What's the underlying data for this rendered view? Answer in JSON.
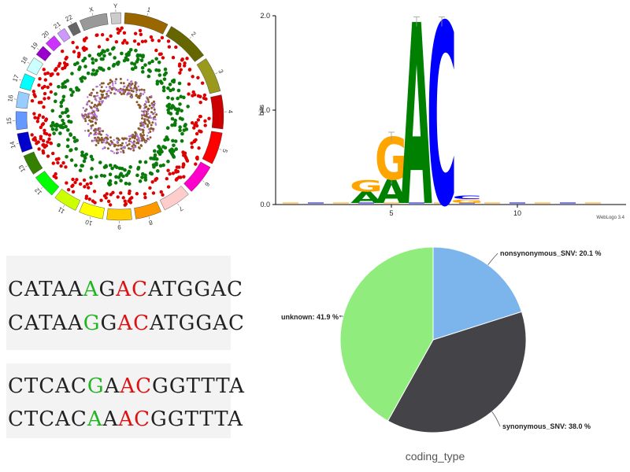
{
  "circos": {
    "chromosomes": [
      "1",
      "2",
      "3",
      "4",
      "5",
      "6",
      "7",
      "8",
      "9",
      "10",
      "11",
      "12",
      "13",
      "14",
      "15",
      "16",
      "17",
      "18",
      "19",
      "20",
      "21",
      "22",
      "X",
      "Y"
    ],
    "colors": [
      "#996600",
      "#666600",
      "#99991e",
      "#cc0000",
      "#ff0000",
      "#ff00cc",
      "#ffcccc",
      "#ff9900",
      "#ffcc00",
      "#ffff00",
      "#ccff00",
      "#00ff00",
      "#358000",
      "#0000cc",
      "#6699ff",
      "#99ccff",
      "#00ffff",
      "#ccffff",
      "#9900cc",
      "#cc33ff",
      "#cc99ff",
      "#666666",
      "#999999",
      "#cccccc"
    ],
    "track_colors": [
      "#dd0000",
      "#0a7a0a",
      "#8b5a2b",
      "#b06fe0"
    ]
  },
  "logo_chart": {
    "type": "sequence-logo",
    "ylabel": "bits",
    "yticks": [
      "0.0",
      "1.0",
      "2.0"
    ],
    "ylim": [
      0,
      2
    ],
    "xticks": [
      "5",
      "10"
    ],
    "credit": "WebLogo 3.4",
    "positions": [
      {
        "pos": 1,
        "letters": []
      },
      {
        "pos": 2,
        "letters": []
      },
      {
        "pos": 3,
        "letters": []
      },
      {
        "pos": 4,
        "letters": [
          {
            "l": "A",
            "h": 0.12
          },
          {
            "l": "G",
            "h": 0.12
          }
        ]
      },
      {
        "pos": 5,
        "letters": [
          {
            "l": "A",
            "h": 0.25
          },
          {
            "l": "G",
            "h": 0.45
          }
        ]
      },
      {
        "pos": 6,
        "letters": [
          {
            "l": "A",
            "h": 1.92
          }
        ]
      },
      {
        "pos": 7,
        "letters": [
          {
            "l": "C",
            "h": 1.92
          }
        ]
      },
      {
        "pos": 8,
        "letters": [
          {
            "l": "G",
            "h": 0.04
          },
          {
            "l": "C",
            "h": 0.04
          }
        ]
      },
      {
        "pos": 9,
        "letters": []
      },
      {
        "pos": 10,
        "letters": []
      },
      {
        "pos": 11,
        "letters": []
      }
    ],
    "letter_colors": {
      "A": "#008000",
      "C": "#0000ff",
      "G": "#ffa500",
      "T": "#ff0000"
    }
  },
  "sequences": {
    "rows": [
      [
        {
          "t": "CATAA",
          "c": "#222222"
        },
        {
          "t": "A",
          "c": "#22b422"
        },
        {
          "t": "G",
          "c": "#222222"
        },
        {
          "t": "AC",
          "c": "#dd1111"
        },
        {
          "t": "ATGGAC",
          "c": "#222222"
        }
      ],
      [
        {
          "t": "CATAA",
          "c": "#222222"
        },
        {
          "t": "G",
          "c": "#22b422"
        },
        {
          "t": "G",
          "c": "#222222"
        },
        {
          "t": "AC",
          "c": "#dd1111"
        },
        {
          "t": "ATGGAC",
          "c": "#222222"
        }
      ],
      [
        {
          "t": "CTCAC",
          "c": "#222222"
        },
        {
          "t": "G",
          "c": "#22b422"
        },
        {
          "t": "A",
          "c": "#222222"
        },
        {
          "t": "AC",
          "c": "#dd1111"
        },
        {
          "t": "GGTTTA",
          "c": "#222222"
        }
      ],
      [
        {
          "t": "CTCAC",
          "c": "#222222"
        },
        {
          "t": "A",
          "c": "#22b422"
        },
        {
          "t": "A",
          "c": "#222222"
        },
        {
          "t": "AC",
          "c": "#dd1111"
        },
        {
          "t": "GGTTTA",
          "c": "#222222"
        }
      ]
    ]
  },
  "chart_data": {
    "type": "pie",
    "title": "coding_type",
    "slices": [
      {
        "name": "nonsynonymous_SNV",
        "label": "nonsynonymous_SNV: 20.1 %",
        "value": 20.1,
        "color": "#7cb5ec"
      },
      {
        "name": "synonymous_SNV",
        "label": "synonymous_SNV: 38.0 %",
        "value": 38.0,
        "color": "#434348"
      },
      {
        "name": "unknown",
        "label": "unknown: 41.9 %",
        "value": 41.9,
        "color": "#90ed7d"
      }
    ]
  }
}
